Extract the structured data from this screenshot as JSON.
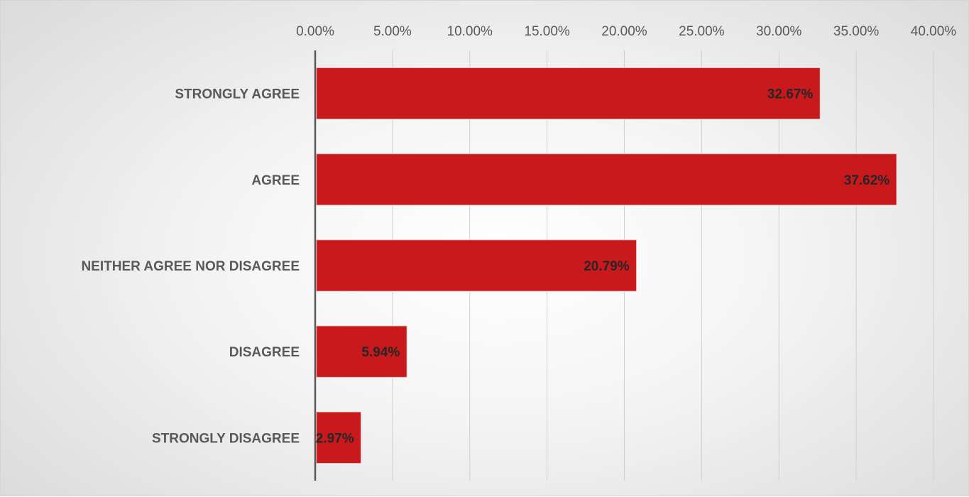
{
  "chart_data": {
    "type": "bar",
    "orientation": "horizontal",
    "title": "",
    "xlabel": "",
    "ylabel": "",
    "xlim": [
      0,
      40
    ],
    "x_ticks": [
      "0.00%",
      "5.00%",
      "10.00%",
      "15.00%",
      "20.00%",
      "25.00%",
      "30.00%",
      "35.00%",
      "40.00%"
    ],
    "x_tick_values": [
      0,
      5,
      10,
      15,
      20,
      25,
      30,
      35,
      40
    ],
    "x_axis_position": "top",
    "grid": true,
    "legend": "none",
    "bar_color": "#c8191c",
    "categories": [
      "STRONGLY AGREE",
      "AGREE",
      "NEITHER AGREE NOR DISAGREE",
      "DISAGREE",
      "STRONGLY DISAGREE"
    ],
    "values": [
      32.67,
      37.62,
      20.79,
      5.94,
      2.97
    ],
    "data_labels": [
      "32.67%",
      "37.62%",
      "20.79%",
      "5.94%",
      "2.97%"
    ]
  }
}
